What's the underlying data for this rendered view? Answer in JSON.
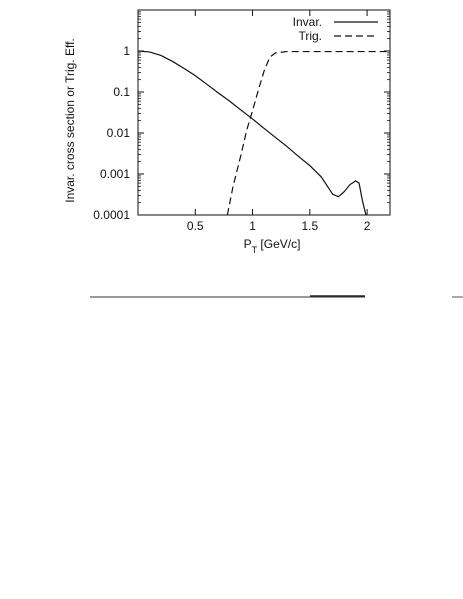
{
  "chart_data": {
    "type": "line",
    "title": "",
    "xlabel": "P",
    "xlabel_subscript": "T",
    "xlabel_suffix": " [GeV/c]",
    "ylabel": "Invar. cross section or Trig. Eff.",
    "xlim": [
      0,
      2.2
    ],
    "ylim": [
      0.0001,
      10
    ],
    "yscale": "log",
    "grid": false,
    "legend_position": "top-right",
    "x_ticks": [
      0.5,
      1,
      1.5,
      2
    ],
    "x_tick_labels": [
      "0.5",
      "1",
      "1.5",
      "2"
    ],
    "y_ticks": [
      0.0001,
      0.001,
      0.01,
      0.1,
      1
    ],
    "y_tick_labels": [
      "0.0001",
      "0.001",
      "0.01",
      "0.1",
      "1"
    ],
    "series": [
      {
        "name": "Invar.",
        "style": "solid",
        "color": "#111111",
        "points": [
          [
            0.0,
            1.0
          ],
          [
            0.1,
            0.95
          ],
          [
            0.2,
            0.78
          ],
          [
            0.3,
            0.56
          ],
          [
            0.4,
            0.38
          ],
          [
            0.5,
            0.25
          ],
          [
            0.6,
            0.155
          ],
          [
            0.7,
            0.095
          ],
          [
            0.8,
            0.06
          ],
          [
            0.9,
            0.036
          ],
          [
            1.0,
            0.022
          ],
          [
            1.1,
            0.013
          ],
          [
            1.2,
            0.0078
          ],
          [
            1.3,
            0.0047
          ],
          [
            1.4,
            0.0027
          ],
          [
            1.5,
            0.0016
          ],
          [
            1.6,
            0.00085
          ],
          [
            1.7,
            0.00032
          ],
          [
            1.75,
            0.00028
          ],
          [
            1.8,
            0.00037
          ],
          [
            1.85,
            0.00055
          ],
          [
            1.9,
            0.00068
          ],
          [
            1.93,
            0.0006
          ],
          [
            1.96,
            0.00022
          ],
          [
            1.99,
            0.0001
          ]
        ]
      },
      {
        "name": "Trig.",
        "style": "dashed",
        "color": "#111111",
        "points": [
          [
            0.78,
            0.0001
          ],
          [
            0.83,
            0.0005
          ],
          [
            0.9,
            0.003
          ],
          [
            0.95,
            0.012
          ],
          [
            1.0,
            0.035
          ],
          [
            1.05,
            0.11
          ],
          [
            1.1,
            0.32
          ],
          [
            1.15,
            0.7
          ],
          [
            1.2,
            0.9
          ],
          [
            1.3,
            0.97
          ],
          [
            1.5,
            0.97
          ],
          [
            1.8,
            0.97
          ],
          [
            2.0,
            0.97
          ],
          [
            2.2,
            0.97
          ]
        ]
      }
    ]
  }
}
